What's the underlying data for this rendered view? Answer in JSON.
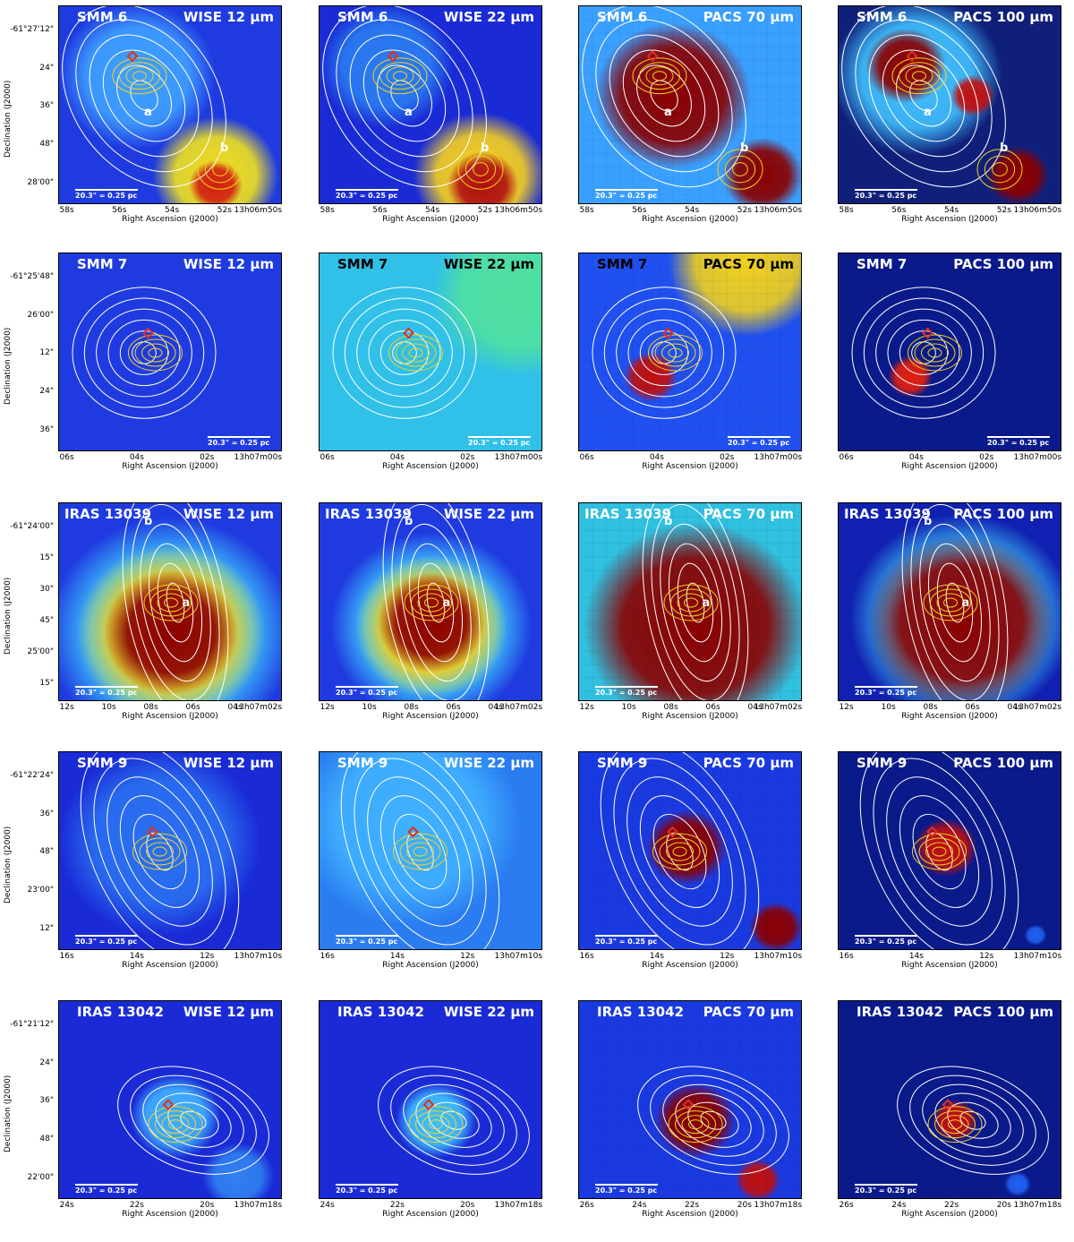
{
  "scale_bar": "20.3\" = 0.25 pc",
  "xlabel": "Right Ascension (J2000)",
  "ylabel": "Declination (J2000)",
  "bands": [
    "WISE 12 µm",
    "WISE 22 µm",
    "PACS 70 µm",
    "PACS 100 µm"
  ],
  "rows": [
    {
      "source": "SMM 6",
      "yticks": [
        "-61°27'12\"",
        "24\"",
        "36\"",
        "48\"",
        "28'00\""
      ],
      "xticks": [
        "58s",
        "56s",
        "54s",
        "52s",
        "13h06m50s"
      ],
      "markers": [
        "a",
        "b"
      ]
    },
    {
      "source": "SMM 7",
      "yticks": [
        "-61°25'48\"",
        "26'00\"",
        "12\"",
        "24\"",
        "36\""
      ],
      "xticks": [
        "06s",
        "04s",
        "02s",
        "13h07m00s"
      ],
      "markers": []
    },
    {
      "source": "IRAS 13039",
      "yticks": [
        "-61°24'00\"",
        "15\"",
        "30\"",
        "45\"",
        "25'00\"",
        "15\""
      ],
      "xticks": [
        "12s",
        "10s",
        "08s",
        "06s",
        "04s",
        "13h07m02s"
      ],
      "markers": [
        "a",
        "b"
      ]
    },
    {
      "source": "SMM 9",
      "yticks": [
        "-61°22'24\"",
        "36\"",
        "48\"",
        "23'00\"",
        "12\""
      ],
      "xticks": [
        "16s",
        "14s",
        "12s",
        "13h07m10s"
      ],
      "markers": []
    },
    {
      "source": "IRAS 13042",
      "yticks": [
        "-61°21'12\"",
        "24\"",
        "36\"",
        "48\"",
        "22'00\""
      ],
      "xticks": [
        "24s",
        "22s",
        "20s",
        "13h07m18s"
      ],
      "xticks_pacs": [
        "26s",
        "24s",
        "22s",
        "20s",
        "13h07m18s"
      ],
      "markers": []
    }
  ],
  "colors": {
    "background_blue": "#1a2bd6",
    "hot_red": "#8b0000",
    "contour_white": "#ffffff",
    "contour_yellow": "#f2d21a",
    "marker_red": "#e0301e"
  }
}
